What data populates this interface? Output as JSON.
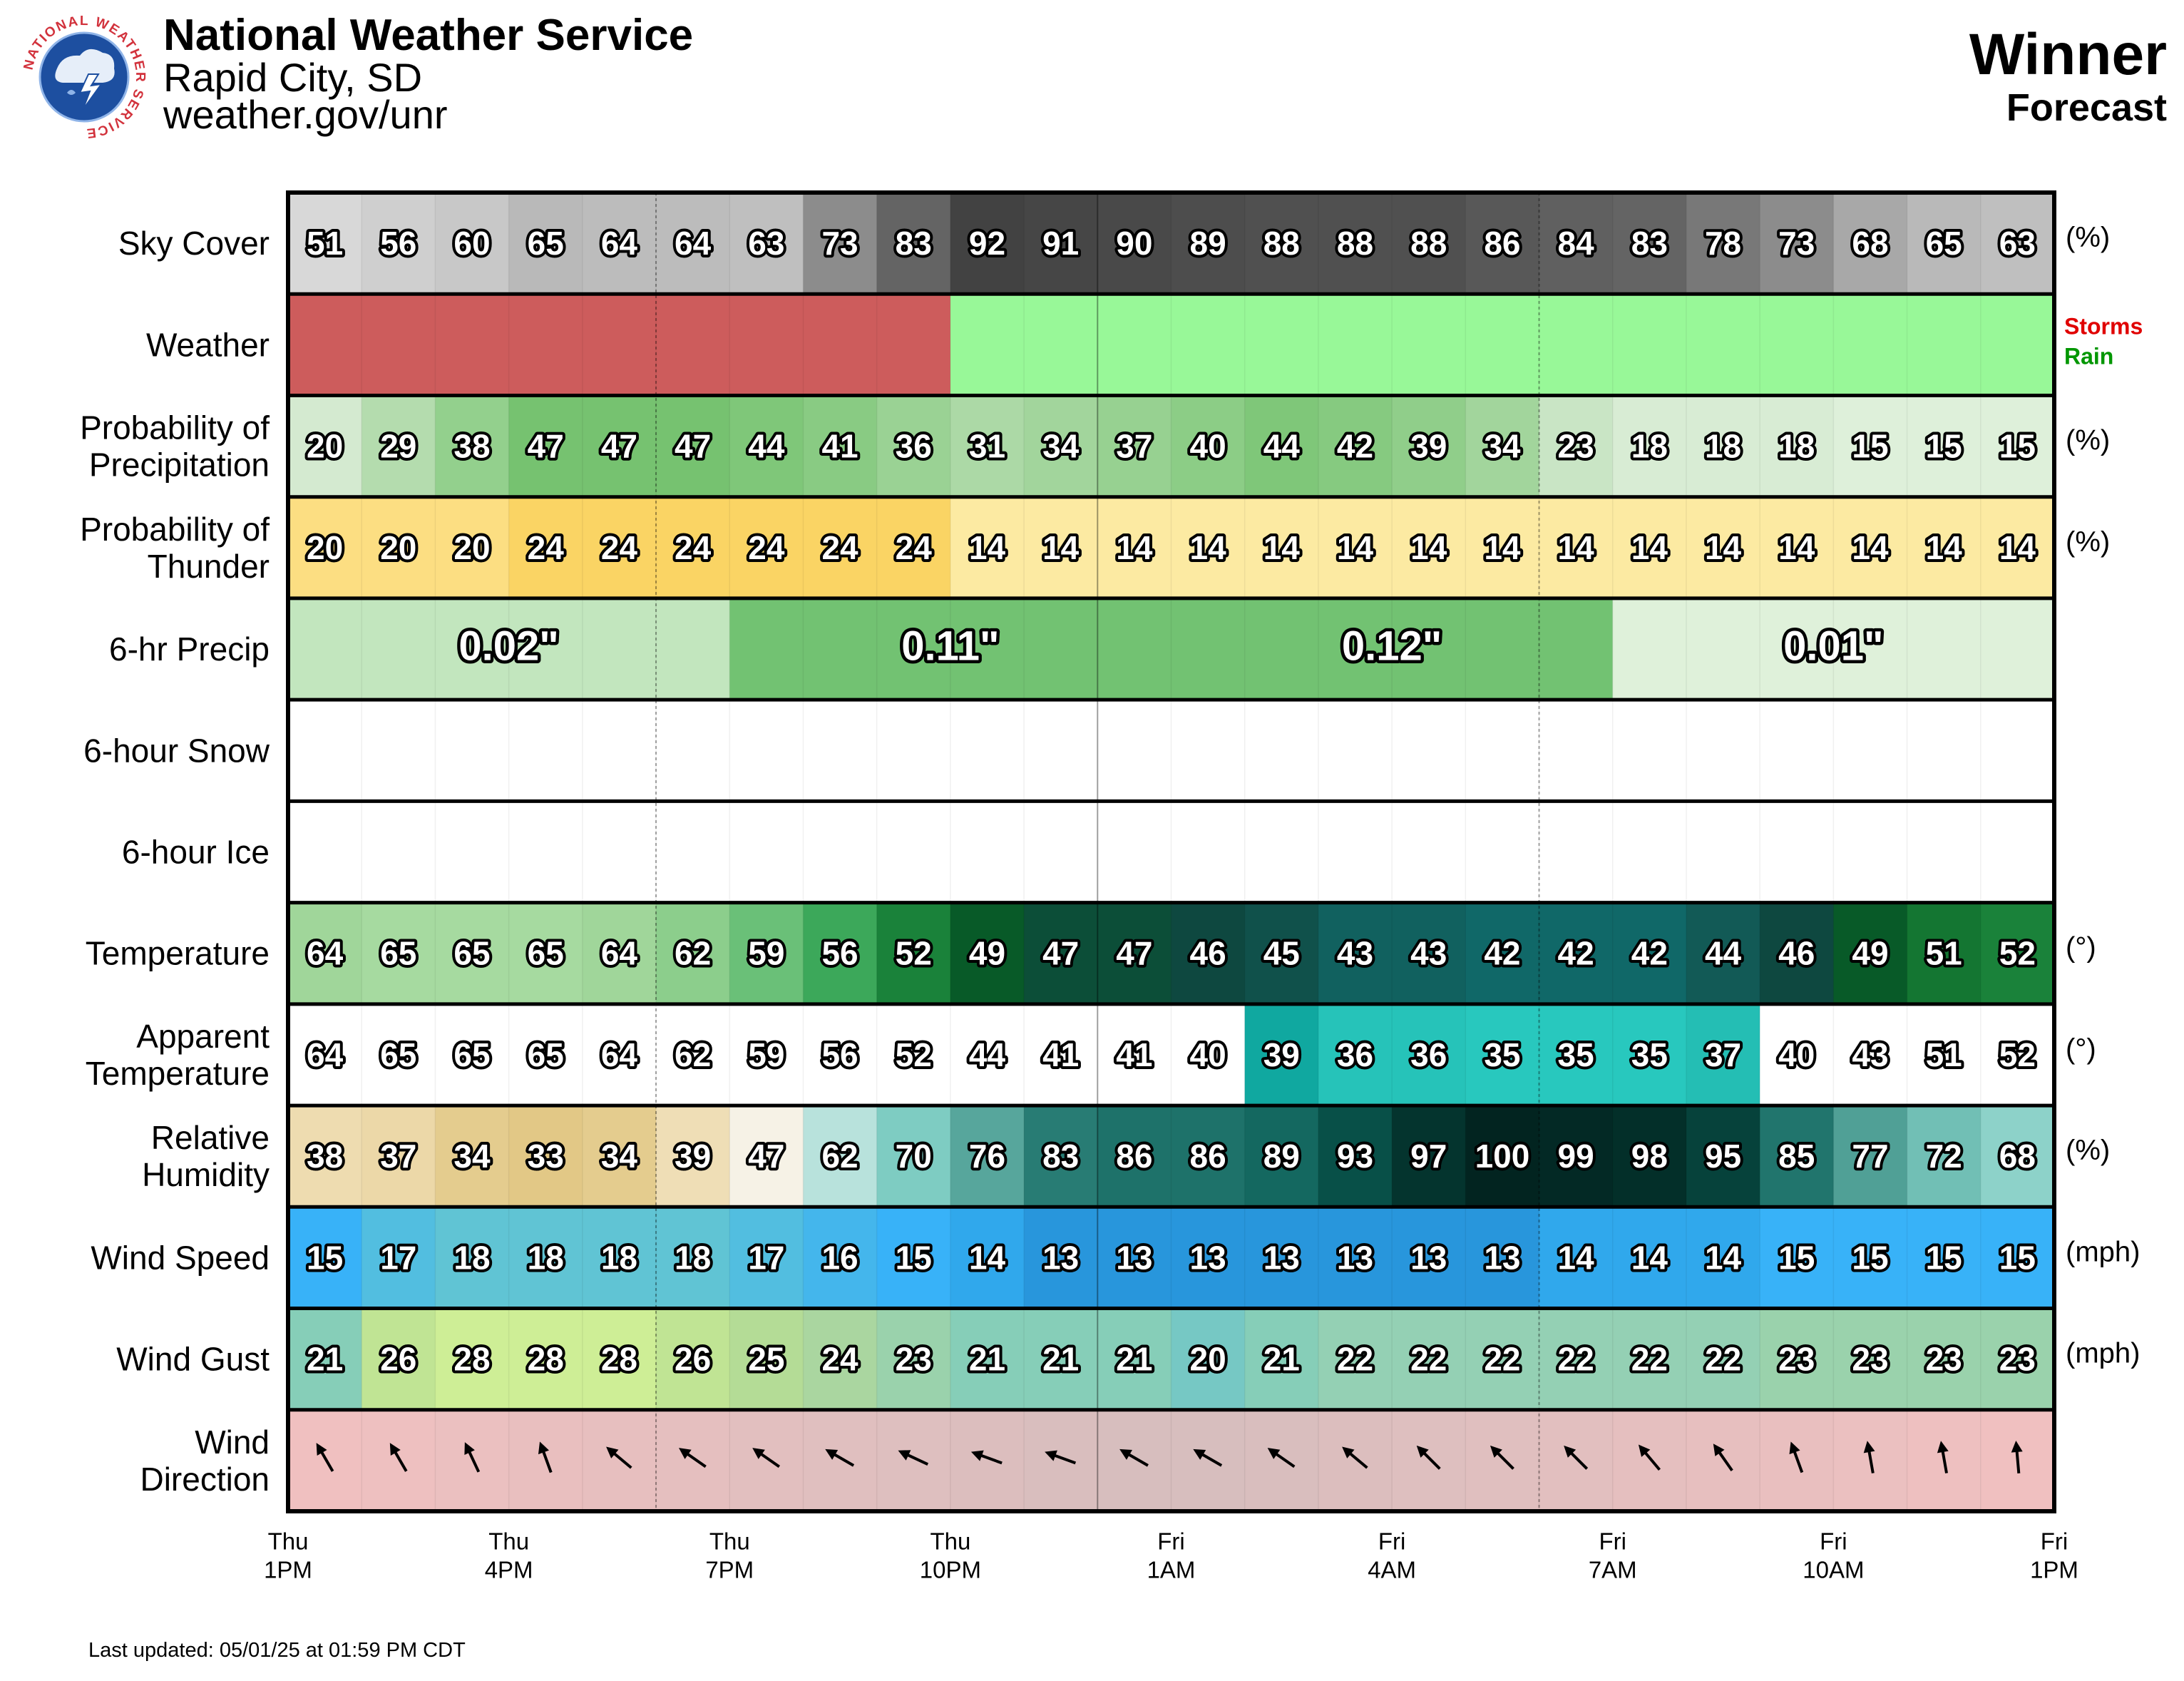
{
  "header": {
    "org": "National Weather Service",
    "office": "Rapid City, SD",
    "url": "weather.gov/unr",
    "location": "Winner",
    "subtitle": "Forecast"
  },
  "footer": {
    "updated": "Last updated: 05/01/25 at 01:59 PM CDT"
  },
  "logo": {
    "icon": "nws-seal-logo",
    "ring_text": "NATIONAL WEATHER SERVICE"
  },
  "colors": {
    "storms": "#e00000",
    "rain": "#009600",
    "weather_storms_bg": "#cd5c5c",
    "weather_rain_bg": "#98f898"
  },
  "chart_data": {
    "type": "table",
    "time_axis": {
      "hours": [
        "Thu 1PM",
        "Thu 2PM",
        "Thu 3PM",
        "Thu 4PM",
        "Thu 5PM",
        "Thu 6PM",
        "Thu 7PM",
        "Thu 8PM",
        "Thu 9PM",
        "Thu 10PM",
        "Thu 11PM",
        "Fri 12AM",
        "Fri 1AM",
        "Fri 2AM",
        "Fri 3AM",
        "Fri 4AM",
        "Fri 5AM",
        "Fri 6AM",
        "Fri 7AM",
        "Fri 8AM",
        "Fri 9AM",
        "Fri 10AM",
        "Fri 11AM",
        "Fri 12PM"
      ],
      "tick_labels": [
        {
          "day": "Thu",
          "time": "1PM"
        },
        {
          "day": "Thu",
          "time": "4PM"
        },
        {
          "day": "Thu",
          "time": "7PM"
        },
        {
          "day": "Thu",
          "time": "10PM"
        },
        {
          "day": "Fri",
          "time": "1AM"
        },
        {
          "day": "Fri",
          "time": "4AM"
        },
        {
          "day": "Fri",
          "time": "7AM"
        },
        {
          "day": "Fri",
          "time": "10AM"
        },
        {
          "day": "Fri",
          "time": "1PM"
        }
      ]
    },
    "rows": [
      {
        "id": "sky",
        "label": [
          "Sky Cover"
        ],
        "unit": "(%)",
        "values": [
          51,
          56,
          60,
          65,
          64,
          64,
          63,
          73,
          83,
          92,
          91,
          90,
          89,
          88,
          88,
          88,
          86,
          84,
          83,
          78,
          73,
          68,
          65,
          63
        ]
      },
      {
        "id": "weather",
        "label": [
          "Weather"
        ],
        "values": [
          "Storms",
          "Storms",
          "Storms",
          "Storms",
          "Storms",
          "Storms",
          "Storms",
          "Storms",
          "Storms",
          "Rain",
          "Rain",
          "Rain",
          "Rain",
          "Rain",
          "Rain",
          "Rain",
          "Rain",
          "Rain",
          "Rain",
          "Rain",
          "Rain",
          "Rain",
          "Rain",
          "Rain"
        ],
        "legend": [
          "Storms",
          "Rain"
        ]
      },
      {
        "id": "pop",
        "label": [
          "Probability of",
          "Precipitation"
        ],
        "unit": "(%)",
        "values": [
          20,
          29,
          38,
          47,
          47,
          47,
          44,
          41,
          36,
          31,
          34,
          37,
          40,
          44,
          42,
          39,
          34,
          23,
          18,
          18,
          18,
          15,
          15,
          15
        ]
      },
      {
        "id": "thunder",
        "label": [
          "Probability of",
          "Thunder"
        ],
        "unit": "(%)",
        "values": [
          20,
          20,
          20,
          24,
          24,
          24,
          24,
          24,
          24,
          14,
          14,
          14,
          14,
          14,
          14,
          14,
          14,
          14,
          14,
          14,
          14,
          14,
          14,
          14
        ]
      },
      {
        "id": "qpf",
        "label": [
          "6-hr Precip"
        ],
        "values": [
          "0.02\"",
          "0.11\"",
          "0.12\"",
          "0.01\""
        ],
        "amounts_in": [
          0.02,
          0.11,
          0.12,
          0.01
        ]
      },
      {
        "id": "snow",
        "label": [
          "6-hour Snow"
        ],
        "values": []
      },
      {
        "id": "ice",
        "label": [
          "6-hour Ice"
        ],
        "values": []
      },
      {
        "id": "temp",
        "label": [
          "Temperature"
        ],
        "unit": "(°)",
        "values": [
          64,
          65,
          65,
          65,
          64,
          62,
          59,
          56,
          52,
          49,
          47,
          47,
          46,
          45,
          43,
          43,
          42,
          42,
          42,
          44,
          46,
          49,
          51,
          52
        ]
      },
      {
        "id": "apparent",
        "label": [
          "Apparent",
          "Temperature"
        ],
        "unit": "(°)",
        "values": [
          64,
          65,
          65,
          65,
          64,
          62,
          59,
          56,
          52,
          44,
          41,
          41,
          40,
          39,
          36,
          36,
          35,
          35,
          35,
          37,
          40,
          43,
          51,
          52
        ]
      },
      {
        "id": "rh",
        "label": [
          "Relative",
          "Humidity"
        ],
        "unit": "(%)",
        "values": [
          38,
          37,
          34,
          33,
          34,
          39,
          47,
          62,
          70,
          76,
          83,
          86,
          86,
          89,
          93,
          97,
          100,
          99,
          98,
          95,
          85,
          77,
          72,
          68
        ]
      },
      {
        "id": "wspd",
        "label": [
          "Wind Speed"
        ],
        "unit": "(mph)",
        "values": [
          15,
          17,
          18,
          18,
          18,
          18,
          17,
          16,
          15,
          14,
          13,
          13,
          13,
          13,
          13,
          13,
          13,
          14,
          14,
          14,
          15,
          15,
          15,
          15
        ]
      },
      {
        "id": "gust",
        "label": [
          "Wind Gust"
        ],
        "unit": "(mph)",
        "values": [
          21,
          26,
          28,
          28,
          28,
          26,
          25,
          24,
          23,
          21,
          21,
          21,
          20,
          21,
          22,
          22,
          22,
          22,
          22,
          22,
          23,
          23,
          23,
          23
        ]
      },
      {
        "id": "wdir",
        "label": [
          "Wind",
          "Direction"
        ],
        "arrow_directions_deg": [
          330,
          330,
          335,
          340,
          310,
          305,
          305,
          300,
          295,
          290,
          290,
          300,
          300,
          305,
          310,
          315,
          315,
          315,
          320,
          325,
          340,
          350,
          350,
          355
        ]
      }
    ]
  }
}
